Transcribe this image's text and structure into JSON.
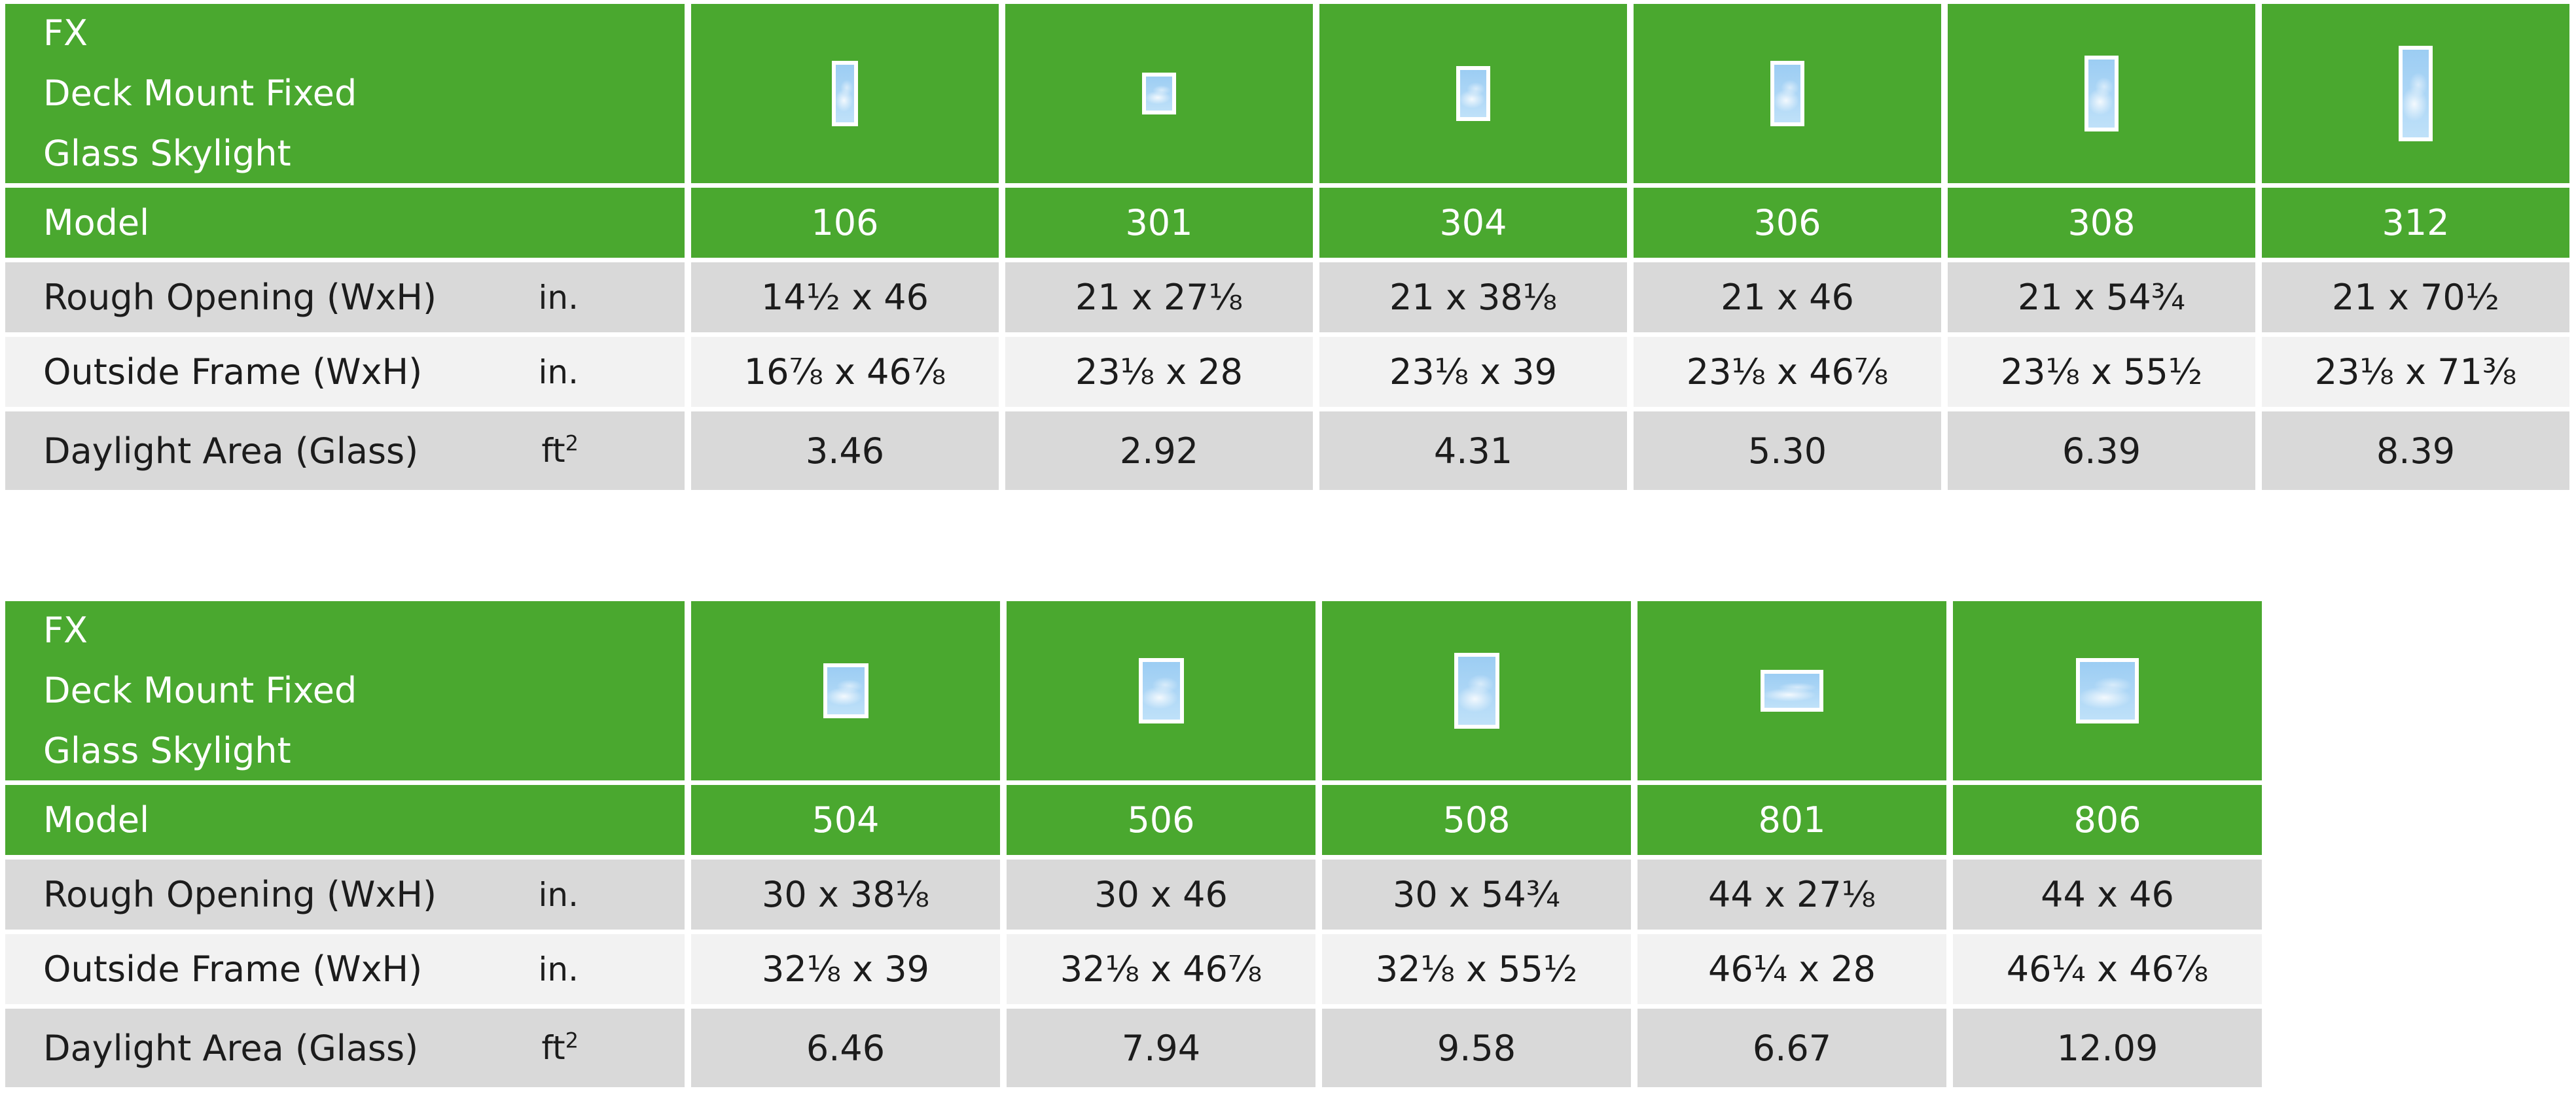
{
  "theme": {
    "green": "#4aa82f",
    "row_dark": "#d9d9d9",
    "row_light": "#f2f2f2",
    "glass_blue": "#aed7f6",
    "frame_white": "#ffffff",
    "text_dark": "#1c1c1c",
    "text_on_green": "#ffffff"
  },
  "tables": [
    {
      "title_lines": [
        "FX",
        "Deck Mount Fixed",
        "Glass Skylight"
      ],
      "model_label": "Model",
      "spec_rows": [
        {
          "label": "Rough Opening (WxH)",
          "unit": "in.",
          "shade": "dark"
        },
        {
          "label": "Outside Frame (WxH)",
          "unit": "in.",
          "shade": "light"
        },
        {
          "label": "Daylight Area (Glass)",
          "unit": "ft²",
          "shade": "dark"
        }
      ],
      "models": [
        {
          "model": "106",
          "icon_w_in": 14.5,
          "icon_h_in": 46,
          "values": [
            "14½ x 46",
            "16⅞ x 46⅞",
            "3.46"
          ]
        },
        {
          "model": "301",
          "icon_w_in": 21,
          "icon_h_in": 27.125,
          "values": [
            "21 x 27⅛",
            "23⅛ x 28",
            "2.92"
          ]
        },
        {
          "model": "304",
          "icon_w_in": 21,
          "icon_h_in": 38.125,
          "values": [
            "21 x 38⅛",
            "23⅛ x 39",
            "4.31"
          ]
        },
        {
          "model": "306",
          "icon_w_in": 21,
          "icon_h_in": 46,
          "values": [
            "21 x 46",
            "23⅛ x 46⅞",
            "5.30"
          ]
        },
        {
          "model": "308",
          "icon_w_in": 21,
          "icon_h_in": 54.75,
          "values": [
            "21 x 54¾",
            "23⅛ x 55½",
            "6.39"
          ]
        },
        {
          "model": "312",
          "icon_w_in": 21,
          "icon_h_in": 70.5,
          "values": [
            "21 x 70½",
            "23⅛ x 71⅜",
            "8.39"
          ]
        }
      ]
    },
    {
      "title_lines": [
        "FX",
        "Deck Mount Fixed",
        "Glass Skylight"
      ],
      "model_label": "Model",
      "spec_rows": [
        {
          "label": "Rough Opening (WxH)",
          "unit": "in.",
          "shade": "dark"
        },
        {
          "label": "Outside Frame (WxH)",
          "unit": "in.",
          "shade": "light"
        },
        {
          "label": "Daylight Area (Glass)",
          "unit": "ft²",
          "shade": "dark"
        }
      ],
      "models": [
        {
          "model": "504",
          "icon_w_in": 30,
          "icon_h_in": 38.125,
          "values": [
            "30 x 38⅛",
            "32⅛ x 39",
            "6.46"
          ]
        },
        {
          "model": "506",
          "icon_w_in": 30,
          "icon_h_in": 46,
          "values": [
            "30 x 46",
            "32⅛ x 46⅞",
            "7.94"
          ]
        },
        {
          "model": "508",
          "icon_w_in": 30,
          "icon_h_in": 54.75,
          "values": [
            "30 x 54¾",
            "32⅛ x 55½",
            "9.58"
          ]
        },
        {
          "model": "801",
          "icon_w_in": 44,
          "icon_h_in": 27.125,
          "values": [
            "44 x 27⅛",
            "46¼ x 28",
            "6.67"
          ]
        },
        {
          "model": "806",
          "icon_w_in": 44,
          "icon_h_in": 46,
          "values": [
            "44 x 46",
            "46¼ x 46⅞",
            "12.09"
          ]
        }
      ]
    }
  ]
}
